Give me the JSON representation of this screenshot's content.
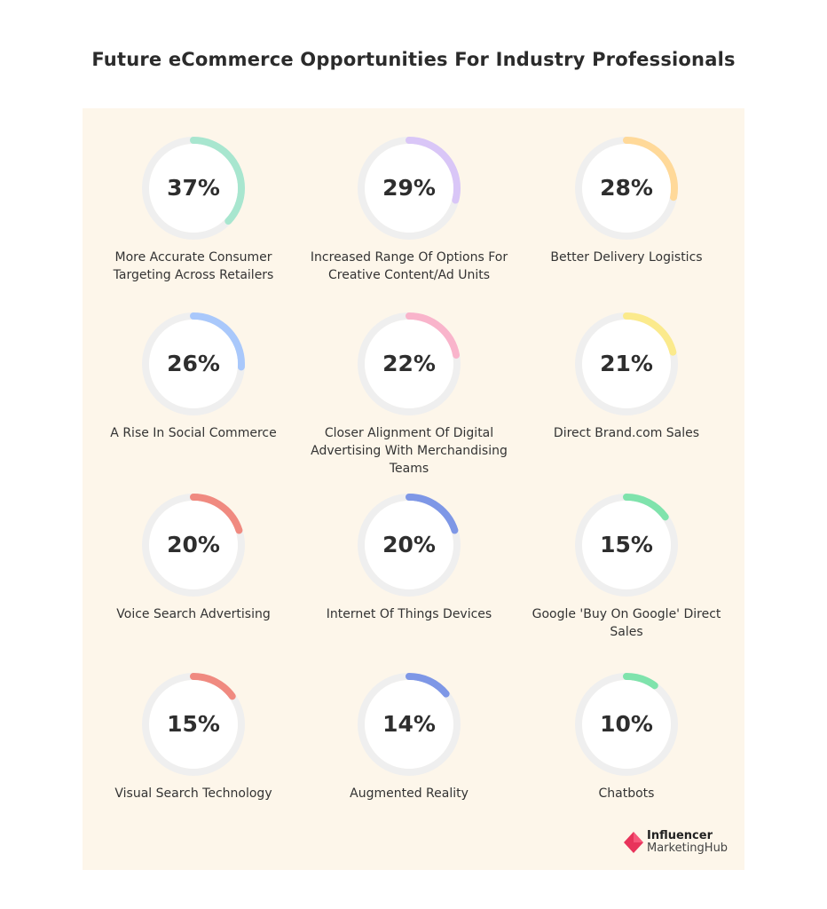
{
  "title": "Future eCommerce Opportunities For Industry Professionals",
  "chart_data": {
    "type": "radial-progress",
    "title": "Future eCommerce Opportunities For Industry Professionals",
    "items": [
      {
        "label": "More Accurate Consumer Targeting Across Retailers",
        "value": 37,
        "display": "37%",
        "color": "#a8e6cf"
      },
      {
        "label": "Increased Range Of Options For Creative Content/Ad Units",
        "value": 29,
        "display": "29%",
        "color": "#d9c6f7"
      },
      {
        "label": "Better Delivery Logistics",
        "value": 28,
        "display": "28%",
        "color": "#ffd999"
      },
      {
        "label": "A Rise In Social Commerce",
        "value": 26,
        "display": "26%",
        "color": "#a9c8fb"
      },
      {
        "label": "Closer Alignment Of Digital Advertising With Merchandising Teams",
        "value": 22,
        "display": "22%",
        "color": "#f9b4cb"
      },
      {
        "label": "Direct Brand.com Sales",
        "value": 21,
        "display": "21%",
        "color": "#fbea8c"
      },
      {
        "label": "Voice Search Advertising",
        "value": 20,
        "display": "20%",
        "color": "#f08a80"
      },
      {
        "label": "Internet Of Things Devices",
        "value": 20,
        "display": "20%",
        "color": "#7e97e6"
      },
      {
        "label": "Google 'Buy On Google' Direct Sales",
        "value": 15,
        "display": "15%",
        "color": "#7fe3ac"
      },
      {
        "label": "Visual Search Technology",
        "value": 15,
        "display": "15%",
        "color": "#f08a80"
      },
      {
        "label": "Augmented Reality",
        "value": 14,
        "display": "14%",
        "color": "#7e97e6"
      },
      {
        "label": "Chatbots",
        "value": 10,
        "display": "10%",
        "color": "#7fe3ac"
      }
    ],
    "track_color": "#efefef"
  },
  "logo": {
    "line1": "Influencer",
    "line2": "MarketingHub",
    "mark_color": "#e8345b"
  }
}
